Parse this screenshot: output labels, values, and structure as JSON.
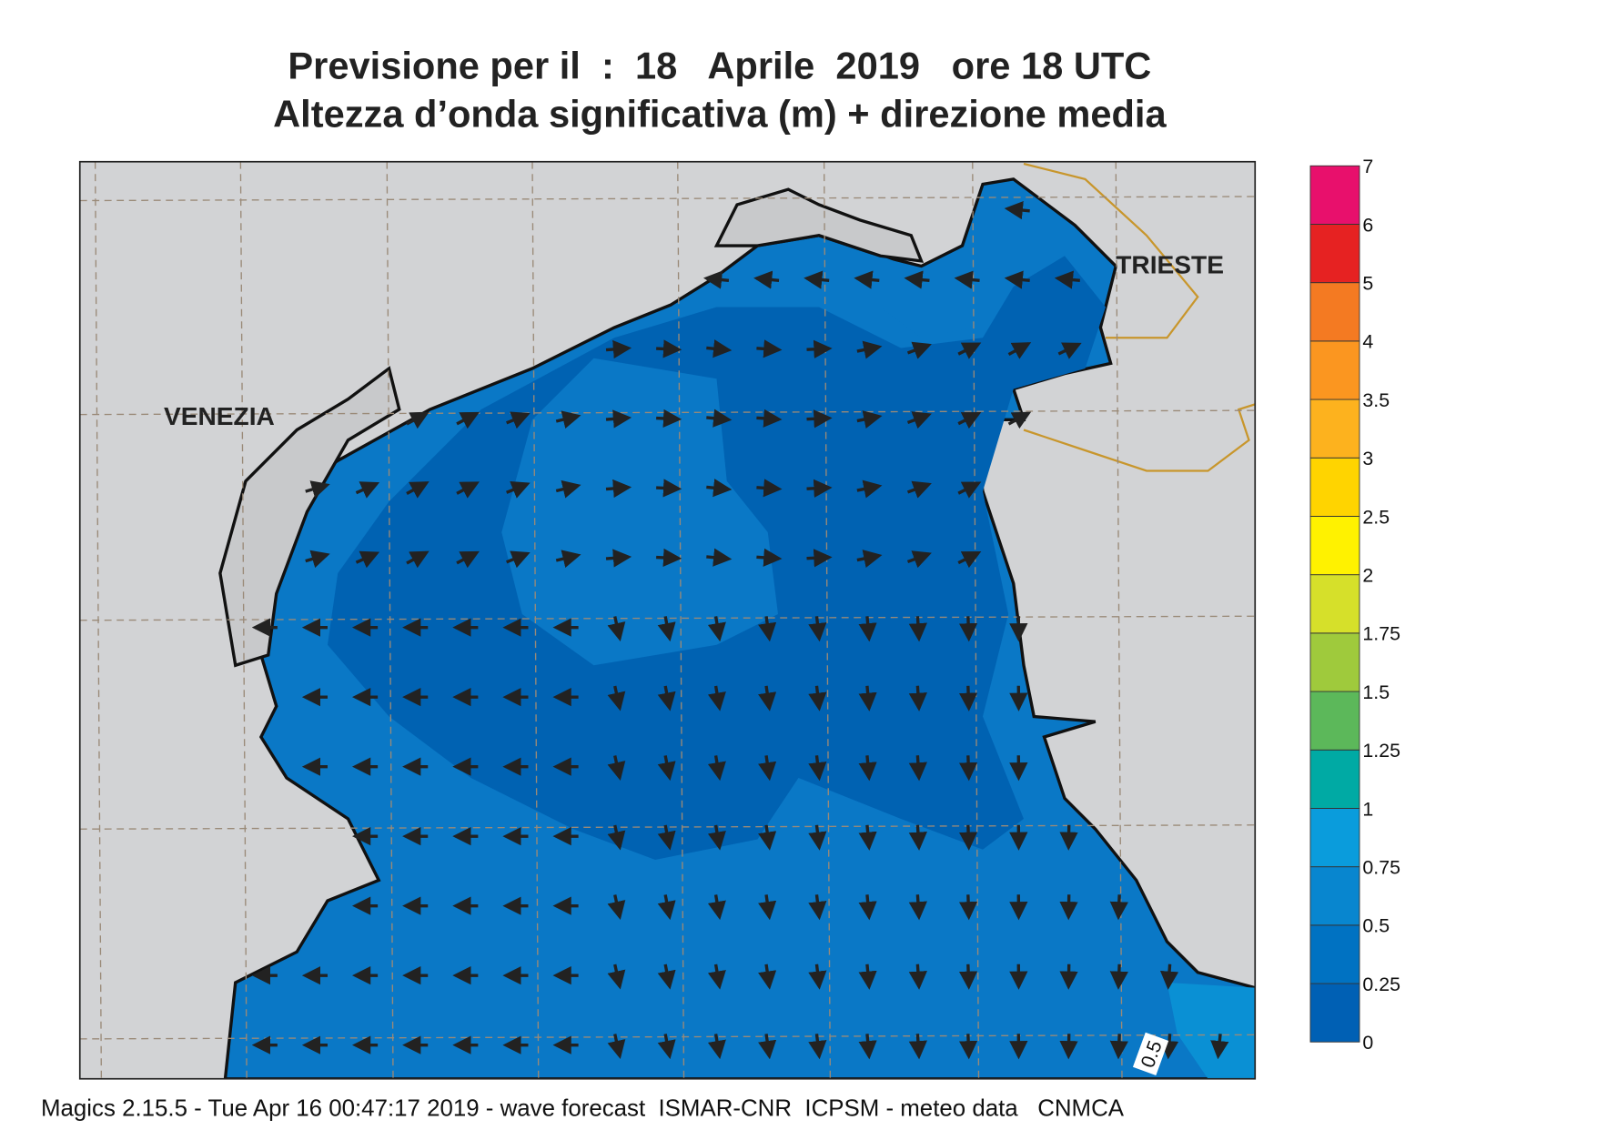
{
  "header": {
    "title_line1": "Previsione per il  :  18   Aprile  2019   ore 18 UTC",
    "title_line2": "Altezza d’onda significativa (m) + direzione media"
  },
  "map": {
    "labels": [
      "VENEZIA",
      "TRIESTE"
    ],
    "contour_label": "0.5"
  },
  "colorbar": {
    "labels": [
      "0",
      "0.25",
      "0.5",
      "0.75",
      "1",
      "1.25",
      "1.5",
      "1.75",
      "2",
      "2.5",
      "3",
      "3.5",
      "4",
      "5",
      "6",
      "7"
    ],
    "colors": [
      "#0060b4",
      "#0072c2",
      "#0886cf",
      "#0a9cdc",
      "#00aaa4",
      "#5cb85a",
      "#9fca3c",
      "#d6e02a",
      "#fff200",
      "#ffd400",
      "#fdb21e",
      "#fb9620",
      "#f47a22",
      "#e62222",
      "#e8106c"
    ]
  },
  "footer": "Magics 2.15.5 - Tue Apr 16 00:47:17 2019 - wave forecast  ISMAR-CNR  ICPSM - meteo data   CNMCA"
}
